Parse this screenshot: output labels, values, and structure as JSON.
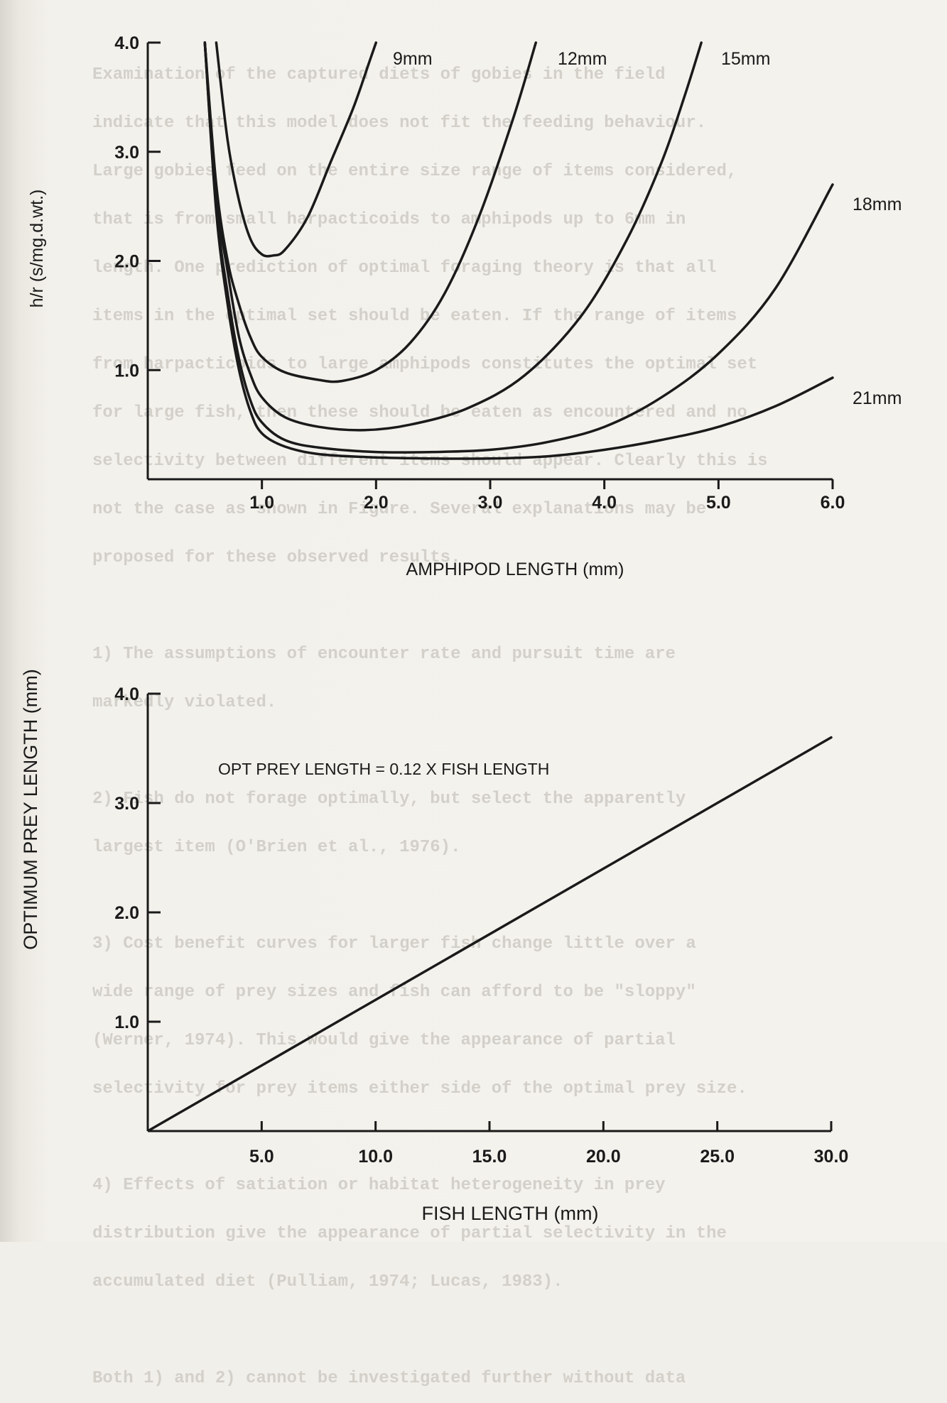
{
  "page": {
    "background_color": "#f1efe9",
    "ink_color": "#1a1a1a",
    "bleed_through_text": "Examination of the captured diets of gobies in the field\nindicate that this model does not fit the feeding behaviour.\nLarge gobies feed on the entire size range of items considered,\nthat is from small harpacticoids to amphipods up to 6mm in\nlength. One prediction of optimal foraging theory is that all\nitems in the optimal set should be eaten. If the range of items\nfrom harpacticoids to large amphipods constitutes the optimal set\nfor large fish, then these should be eaten as encountered and no\nselectivity between different items should appear. Clearly this is\nnot the case as shown in Figure. Several explanations may be\nproposed for these observed results.\n\n1) The assumptions of encounter rate and pursuit time are\nmarkedly violated.\n\n2) Fish do not forage optimally, but select the apparently\nlargest item (O'Brien et al., 1976).\n\n3) Cost benefit curves for larger fish change little over a\nwide range of prey sizes and fish can afford to be \"sloppy\"\n(Werner, 1974). This would give the appearance of partial\nselectivity for prey items either side of the optimal prey size.\n\n4) Effects of satiation or habitat heterogeneity in prey\ndistribution give the appearance of partial selectivity in the\naccumulated diet (Pulliam, 1974; Lucas, 1983).\n\nBoth 1) and 2) cannot be investigated further without data"
  },
  "chart_data": [
    {
      "type": "line",
      "title": "",
      "xlabel": "AMPHIPOD LENGTH (mm)",
      "ylabel": "h/r (s/mg.d.wt.)",
      "xlim": [
        0,
        6.0
      ],
      "ylim": [
        0,
        4.0
      ],
      "xticks": [
        1.0,
        2.0,
        3.0,
        4.0,
        5.0,
        6.0
      ],
      "xtick_labels": [
        "1.0",
        "2.0",
        "3.0",
        "4.0",
        "5.0",
        "6.0"
      ],
      "yticks": [
        1.0,
        2.0,
        3.0,
        4.0
      ],
      "ytick_labels": [
        "1.0",
        "2.0",
        "3.0",
        "4.0"
      ],
      "grid": false,
      "legend": "none (direct labels at curve ends)",
      "series": [
        {
          "name": "9mm",
          "points": [
            [
              0.6,
              4.0
            ],
            [
              0.7,
              3.1
            ],
            [
              0.8,
              2.55
            ],
            [
              0.9,
              2.2
            ],
            [
              1.0,
              2.06
            ],
            [
              1.1,
              2.05
            ],
            [
              1.2,
              2.1
            ],
            [
              1.4,
              2.4
            ],
            [
              1.6,
              2.9
            ],
            [
              1.8,
              3.4
            ],
            [
              1.95,
              3.85
            ],
            [
              2.0,
              4.0
            ]
          ]
        },
        {
          "name": "12mm",
          "points": [
            [
              0.5,
              4.0
            ],
            [
              0.6,
              2.7
            ],
            [
              0.7,
              2.0
            ],
            [
              0.8,
              1.6
            ],
            [
              0.9,
              1.3
            ],
            [
              1.0,
              1.12
            ],
            [
              1.2,
              0.98
            ],
            [
              1.5,
              0.91
            ],
            [
              1.7,
              0.9
            ],
            [
              2.0,
              1.0
            ],
            [
              2.3,
              1.25
            ],
            [
              2.6,
              1.7
            ],
            [
              2.9,
              2.4
            ],
            [
              3.2,
              3.3
            ],
            [
              3.4,
              4.0
            ]
          ]
        },
        {
          "name": "15mm",
          "points": [
            [
              0.5,
              4.0
            ],
            [
              0.6,
              2.6
            ],
            [
              0.7,
              1.9
            ],
            [
              0.8,
              1.3
            ],
            [
              0.9,
              0.96
            ],
            [
              1.0,
              0.75
            ],
            [
              1.2,
              0.57
            ],
            [
              1.5,
              0.48
            ],
            [
              1.9,
              0.45
            ],
            [
              2.3,
              0.5
            ],
            [
              2.8,
              0.65
            ],
            [
              3.3,
              0.95
            ],
            [
              3.8,
              1.5
            ],
            [
              4.2,
              2.2
            ],
            [
              4.5,
              2.9
            ],
            [
              4.7,
              3.5
            ],
            [
              4.85,
              4.0
            ]
          ]
        },
        {
          "name": "18mm",
          "points": [
            [
              0.5,
              4.0
            ],
            [
              0.6,
              2.5
            ],
            [
              0.7,
              1.7
            ],
            [
              0.8,
              1.1
            ],
            [
              0.9,
              0.72
            ],
            [
              1.0,
              0.52
            ],
            [
              1.2,
              0.36
            ],
            [
              1.5,
              0.29
            ],
            [
              2.0,
              0.25
            ],
            [
              2.5,
              0.25
            ],
            [
              3.0,
              0.27
            ],
            [
              3.5,
              0.34
            ],
            [
              4.0,
              0.48
            ],
            [
              4.5,
              0.75
            ],
            [
              5.0,
              1.15
            ],
            [
              5.5,
              1.75
            ],
            [
              6.0,
              2.7
            ]
          ]
        },
        {
          "name": "21mm",
          "points": [
            [
              0.5,
              4.0
            ],
            [
              0.6,
              2.45
            ],
            [
              0.7,
              1.6
            ],
            [
              0.8,
              1.0
            ],
            [
              0.9,
              0.62
            ],
            [
              1.0,
              0.42
            ],
            [
              1.2,
              0.3
            ],
            [
              1.5,
              0.23
            ],
            [
              2.0,
              0.2
            ],
            [
              2.5,
              0.19
            ],
            [
              3.0,
              0.19
            ],
            [
              3.5,
              0.21
            ],
            [
              4.0,
              0.27
            ],
            [
              4.5,
              0.36
            ],
            [
              5.0,
              0.48
            ],
            [
              5.5,
              0.67
            ],
            [
              6.0,
              0.93
            ]
          ]
        }
      ]
    },
    {
      "type": "line",
      "title": "",
      "xlabel": "FISH LENGTH (mm)",
      "ylabel": "OPTIMUM PREY LENGTH (mm)",
      "xlim": [
        0,
        30.0
      ],
      "ylim": [
        0,
        4.0
      ],
      "xticks": [
        5.0,
        10.0,
        15.0,
        20.0,
        25.0,
        30.0
      ],
      "xtick_labels": [
        "5.0",
        "10.0",
        "15.0",
        "20.0",
        "25.0",
        "30.0"
      ],
      "yticks": [
        1.0,
        2.0,
        3.0,
        4.0
      ],
      "ytick_labels": [
        "1.0",
        "2.0",
        "3.0",
        "4.0"
      ],
      "grid": false,
      "legend": "none",
      "annotation": "OPT PREY LENGTH = 0.12 X FISH LENGTH",
      "series": [
        {
          "points": [
            [
              0,
              0
            ],
            [
              30.0,
              3.6
            ]
          ]
        }
      ]
    }
  ]
}
